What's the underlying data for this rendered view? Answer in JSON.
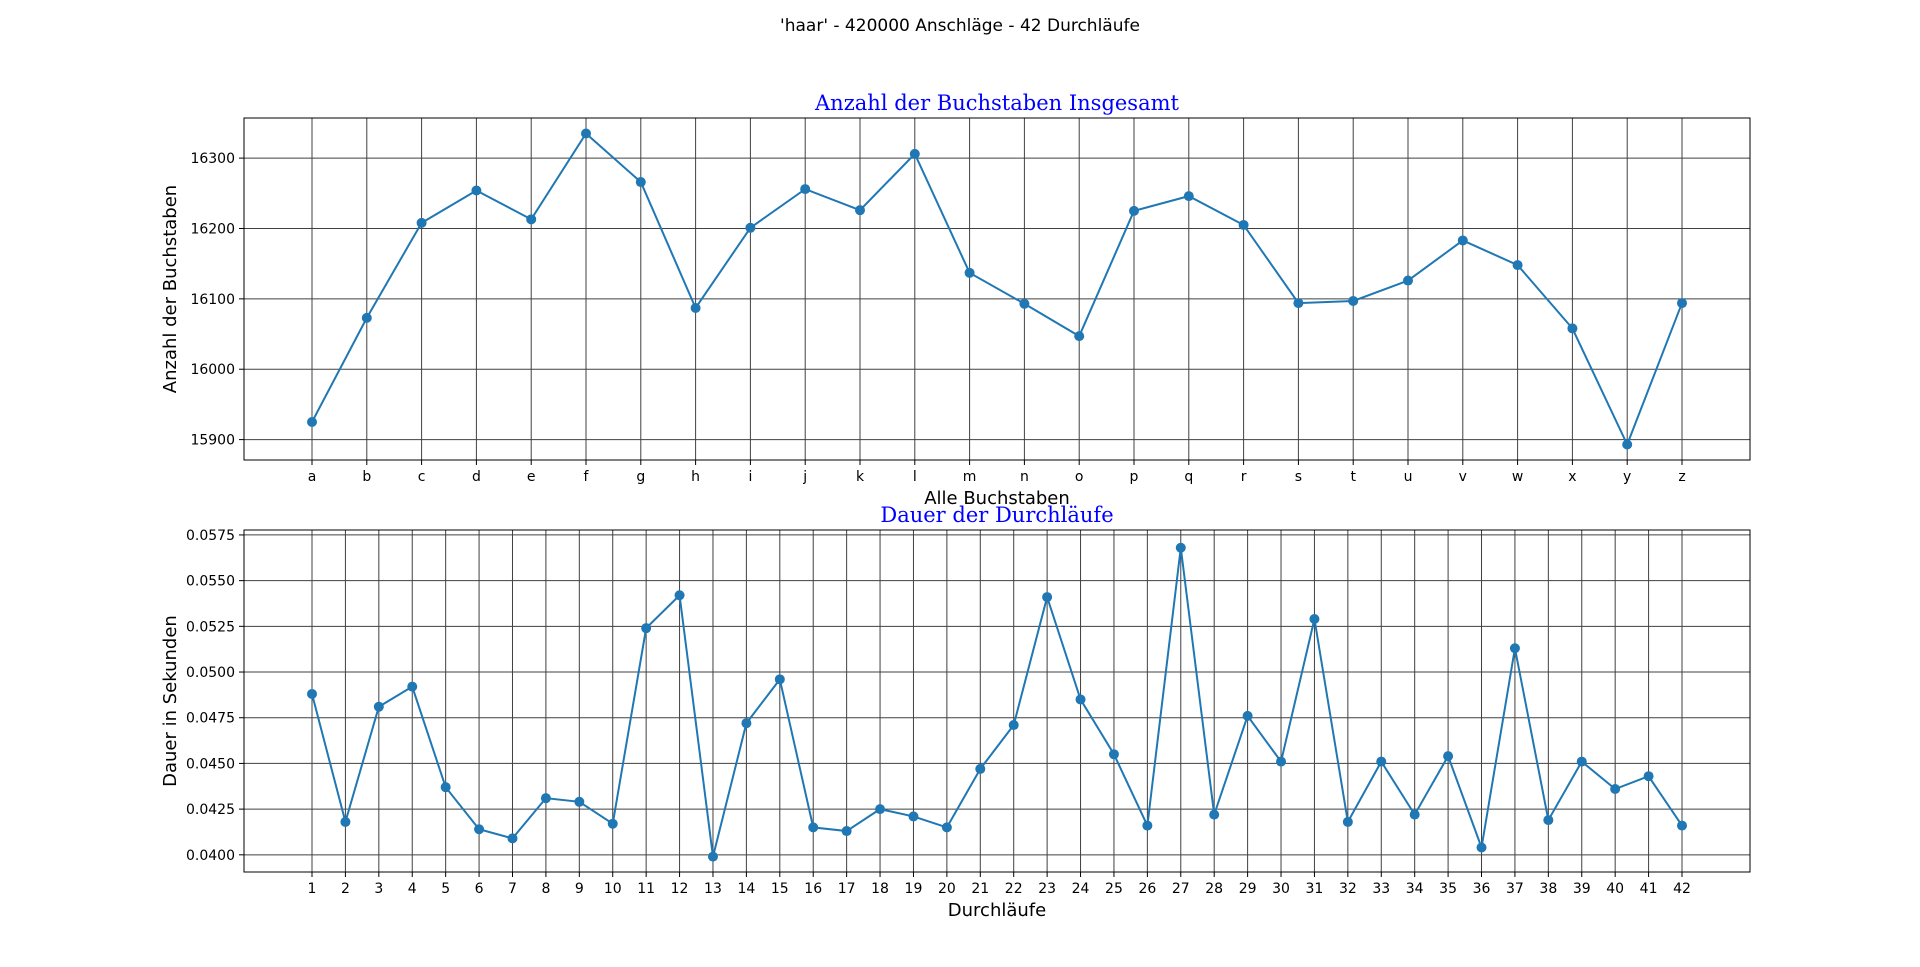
{
  "figure_title": "'haar' - 420000 Anschläge - 42 Durchläufe",
  "colors": {
    "line": "#1f77b4",
    "title": "#0000ff",
    "grid": "#404040"
  },
  "chart_data": [
    {
      "type": "line",
      "title": "Anzahl der Buchstaben Insgesamt",
      "xlabel": "Alle Buchstaben",
      "ylabel": "Anzahl der Buchstaben",
      "categories": [
        "a",
        "b",
        "c",
        "d",
        "e",
        "f",
        "g",
        "h",
        "i",
        "j",
        "k",
        "l",
        "m",
        "n",
        "o",
        "p",
        "q",
        "r",
        "s",
        "t",
        "u",
        "v",
        "w",
        "x",
        "y",
        "z"
      ],
      "values": [
        15925,
        16073,
        16208,
        16254,
        16213,
        16335,
        16266,
        16087,
        16201,
        16256,
        16226,
        16306,
        16137,
        16093,
        16047,
        16225,
        16246,
        16205,
        16094,
        16097,
        16126,
        16183,
        16148,
        16058,
        15893,
        16094
      ],
      "yticks": [
        15900,
        16000,
        16100,
        16200,
        16300
      ],
      "ylim": [
        15871,
        16357
      ],
      "grid": true,
      "marker": "circle"
    },
    {
      "type": "line",
      "title": "Dauer der Durchläufe",
      "xlabel": "Durchläufe",
      "ylabel": "Dauer in Sekunden",
      "categories": [
        "1",
        "2",
        "3",
        "4",
        "5",
        "6",
        "7",
        "8",
        "9",
        "10",
        "11",
        "12",
        "13",
        "14",
        "15",
        "16",
        "17",
        "18",
        "19",
        "20",
        "21",
        "22",
        "23",
        "24",
        "25",
        "26",
        "27",
        "28",
        "29",
        "30",
        "31",
        "32",
        "33",
        "34",
        "35",
        "36",
        "37",
        "38",
        "39",
        "40",
        "41",
        "42"
      ],
      "values": [
        0.0488,
        0.0418,
        0.0481,
        0.0492,
        0.0437,
        0.0414,
        0.0409,
        0.0431,
        0.0429,
        0.0417,
        0.0524,
        0.0542,
        0.0399,
        0.0472,
        0.0496,
        0.0415,
        0.0413,
        0.0425,
        0.0421,
        0.0415,
        0.0447,
        0.0471,
        0.0541,
        0.0485,
        0.0455,
        0.0416,
        0.0568,
        0.0422,
        0.0476,
        0.0451,
        0.0529,
        0.0418,
        0.0451,
        0.0422,
        0.0454,
        0.0404,
        0.0513,
        0.0419,
        0.0451,
        0.0436,
        0.0443,
        0.0416
      ],
      "yticks": [
        "0.0400",
        "0.0425",
        "0.0450",
        "0.0475",
        "0.0500",
        "0.0525",
        "0.0550",
        "0.0575"
      ],
      "ylim": [
        0.03906,
        0.05777
      ],
      "grid": true,
      "marker": "circle"
    }
  ]
}
